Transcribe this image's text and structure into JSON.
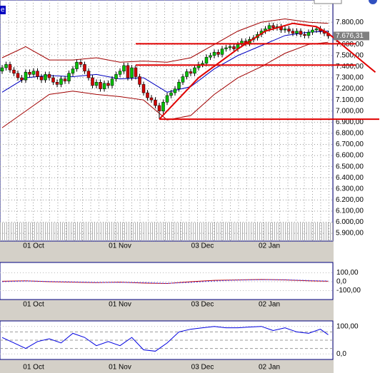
{
  "chart_data": {
    "type": "candlestick",
    "tab": "e",
    "xticks": [
      {
        "value": 8,
        "label": "01 Oct"
      },
      {
        "value": 30,
        "label": "01 Nov"
      },
      {
        "value": 51,
        "label": "03 Dec"
      },
      {
        "value": 68,
        "label": "02 Jan"
      }
    ],
    "ylim": [
      5830,
      8000
    ],
    "yticks": [
      {
        "value": 5900,
        "label": "5.900,00"
      },
      {
        "value": 6000,
        "label": "6.000,00"
      },
      {
        "value": 6100,
        "label": "6.100,00"
      },
      {
        "value": 6200,
        "label": "6.200,00"
      },
      {
        "value": 6300,
        "label": "6.300,00"
      },
      {
        "value": 6400,
        "label": "6.400,00"
      },
      {
        "value": 6500,
        "label": "6.500,00"
      },
      {
        "value": 6600,
        "label": "6.600,00"
      },
      {
        "value": 6700,
        "label": "6.700,00"
      },
      {
        "value": 6800,
        "label": "6.800,00"
      },
      {
        "value": 6900,
        "label": "6.900,00"
      },
      {
        "value": 7000,
        "label": "7.000,00"
      },
      {
        "value": 7100,
        "label": "7.100,00"
      },
      {
        "value": 7200,
        "label": "7.200,00"
      },
      {
        "value": 7300,
        "label": "7.300,00"
      },
      {
        "value": 7400,
        "label": "7.400,00"
      },
      {
        "value": 7500,
        "label": "7.500,00"
      },
      {
        "value": 7600,
        "label": "7.600,00"
      },
      {
        "value": 7800,
        "label": "7.800,00"
      }
    ],
    "grid": true,
    "up_color": "#00c000",
    "down_color": "#d00000",
    "candles": {
      "open": [
        7360,
        7390,
        7420,
        7370,
        7340,
        7300,
        7280,
        7350,
        7330,
        7360,
        7310,
        7280,
        7330,
        7300,
        7260,
        7240,
        7290,
        7270,
        7340,
        7380,
        7440,
        7420,
        7360,
        7300,
        7230,
        7260,
        7200,
        7250,
        7230,
        7290,
        7330,
        7360,
        7410,
        7300,
        7390,
        7310,
        7240,
        7165,
        7120,
        7100,
        7050,
        7000,
        7080,
        7140,
        7165,
        7200,
        7260,
        7310,
        7355,
        7340,
        7390,
        7420,
        7430,
        7485,
        7500,
        7530,
        7510,
        7560,
        7570,
        7580,
        7560,
        7600,
        7630,
        7610,
        7645,
        7660,
        7690,
        7720,
        7740,
        7770,
        7750,
        7760,
        7730,
        7740,
        7720,
        7700,
        7720,
        7690,
        7680,
        7710,
        7730,
        7740,
        7720,
        7700
      ],
      "close": [
        7390,
        7420,
        7370,
        7340,
        7300,
        7280,
        7350,
        7330,
        7360,
        7310,
        7280,
        7330,
        7300,
        7260,
        7240,
        7290,
        7270,
        7340,
        7380,
        7440,
        7420,
        7360,
        7300,
        7230,
        7260,
        7200,
        7250,
        7230,
        7290,
        7330,
        7360,
        7410,
        7300,
        7390,
        7310,
        7240,
        7165,
        7120,
        7100,
        7050,
        7000,
        7080,
        7140,
        7165,
        7200,
        7260,
        7310,
        7355,
        7340,
        7390,
        7420,
        7430,
        7485,
        7500,
        7530,
        7510,
        7560,
        7570,
        7580,
        7560,
        7600,
        7630,
        7610,
        7645,
        7660,
        7690,
        7720,
        7740,
        7770,
        7750,
        7760,
        7730,
        7740,
        7720,
        7700,
        7720,
        7690,
        7680,
        7710,
        7730,
        7740,
        7720,
        7700,
        7676.31
      ],
      "high": [
        7415,
        7445,
        7445,
        7395,
        7365,
        7325,
        7375,
        7375,
        7385,
        7385,
        7335,
        7355,
        7355,
        7325,
        7285,
        7315,
        7315,
        7365,
        7405,
        7465,
        7465,
        7445,
        7385,
        7325,
        7285,
        7285,
        7275,
        7275,
        7315,
        7355,
        7385,
        7435,
        7435,
        7415,
        7415,
        7335,
        7265,
        7190,
        7145,
        7125,
        7075,
        7105,
        7165,
        7190,
        7225,
        7285,
        7335,
        7380,
        7380,
        7415,
        7445,
        7455,
        7510,
        7525,
        7555,
        7555,
        7585,
        7595,
        7605,
        7605,
        7625,
        7655,
        7655,
        7670,
        7685,
        7715,
        7745,
        7765,
        7795,
        7795,
        7785,
        7785,
        7765,
        7765,
        7745,
        7745,
        7745,
        7715,
        7735,
        7755,
        7765,
        7765,
        7745,
        7725
      ],
      "low": [
        7335,
        7365,
        7345,
        7315,
        7275,
        7255,
        7255,
        7305,
        7305,
        7285,
        7255,
        7255,
        7275,
        7235,
        7215,
        7215,
        7245,
        7245,
        7315,
        7355,
        7395,
        7335,
        7275,
        7205,
        7205,
        7175,
        7175,
        7205,
        7205,
        7265,
        7305,
        7335,
        7275,
        7275,
        7285,
        7215,
        7140,
        7095,
        7075,
        7025,
        6930,
        6975,
        7055,
        7115,
        7140,
        7175,
        7235,
        7285,
        7315,
        7315,
        7365,
        7395,
        7405,
        7460,
        7475,
        7485,
        7485,
        7535,
        7545,
        7535,
        7535,
        7575,
        7585,
        7585,
        7620,
        7635,
        7665,
        7695,
        7715,
        7725,
        7725,
        7705,
        7705,
        7695,
        7675,
        7675,
        7665,
        7655,
        7655,
        7685,
        7705,
        7695,
        7675,
        7651
      ],
      "last_price_label": "7.676,31"
    },
    "overlays": [
      {
        "color": "#0000c0",
        "x": [
          0,
          6,
          12,
          18,
          24,
          30,
          36,
          42,
          48,
          54,
          60,
          66,
          72,
          78,
          83
        ],
        "values": [
          7170,
          7300,
          7320,
          7310,
          7330,
          7290,
          7300,
          7170,
          7220,
          7380,
          7500,
          7590,
          7680,
          7710,
          7720
        ]
      },
      {
        "color": "#a00000",
        "x": [
          0,
          6,
          12,
          18,
          24,
          30,
          36,
          42,
          48,
          54,
          60,
          66,
          72,
          78,
          83
        ],
        "values": [
          7480,
          7580,
          7460,
          7460,
          7480,
          7440,
          7450,
          7440,
          7480,
          7600,
          7720,
          7800,
          7830,
          7800,
          7790
        ]
      },
      {
        "color": "#a00000",
        "x": [
          0,
          6,
          12,
          18,
          24,
          30,
          36,
          42,
          48,
          54,
          60,
          66,
          72,
          78,
          83
        ],
        "values": [
          6850,
          7000,
          7150,
          7180,
          7150,
          7130,
          7100,
          6920,
          6960,
          7150,
          7300,
          7400,
          7520,
          7600,
          7620
        ]
      }
    ],
    "drawings": [
      {
        "color": "#e00000",
        "x": [
          34,
          90
        ],
        "values": [
          7606,
          7606
        ]
      },
      {
        "color": "#e00000",
        "x": [
          34,
          90
        ],
        "values": [
          7414,
          7414
        ]
      },
      {
        "color": "#e00000",
        "x": [
          40,
          96
        ],
        "values": [
          6927,
          6927
        ]
      },
      {
        "color": "#e00000",
        "x": [
          40,
          50,
          60,
          67,
          74,
          80,
          83,
          95
        ],
        "values": [
          6927,
          7300,
          7560,
          7720,
          7790,
          7760,
          7700,
          7350
        ]
      }
    ],
    "indicators": [
      {
        "type": "line",
        "ylim": [
          -200,
          200
        ],
        "yticks": [
          {
            "value": 100,
            "label": "100,00"
          },
          {
            "value": 0,
            "label": "0,0"
          },
          {
            "value": -100,
            "label": "-100,00"
          }
        ],
        "series": [
          {
            "color": "#c00000",
            "x": [
              0,
              6,
              12,
              18,
              24,
              30,
              36,
              42,
              48,
              54,
              60,
              66,
              72,
              78,
              83
            ],
            "values": [
              5,
              10,
              0,
              -5,
              -10,
              -5,
              -15,
              -20,
              0,
              15,
              20,
              25,
              20,
              10,
              5
            ]
          },
          {
            "color": "#4040ff",
            "dash": true,
            "x": [
              0,
              6,
              12,
              18,
              24,
              30,
              36,
              42,
              48,
              54,
              60,
              66,
              72,
              78,
              83
            ],
            "values": [
              0,
              8,
              3,
              -2,
              -8,
              -8,
              -10,
              -18,
              -8,
              8,
              18,
              22,
              22,
              14,
              8
            ]
          }
        ]
      },
      {
        "type": "line",
        "ylim": [
          -20,
          120
        ],
        "yticks": [
          {
            "value": 100,
            "label": "100,00"
          },
          {
            "value": 0,
            "label": "0,0"
          }
        ],
        "levels": [
          80,
          50,
          20
        ],
        "series": [
          {
            "color": "#0000e0",
            "x": [
              0,
              3,
              6,
              9,
              12,
              15,
              18,
              21,
              24,
              27,
              30,
              33,
              36,
              39,
              42,
              45,
              48,
              51,
              54,
              57,
              60,
              63,
              66,
              69,
              72,
              75,
              78,
              81,
              83
            ],
            "values": [
              60,
              40,
              20,
              45,
              55,
              40,
              75,
              60,
              30,
              45,
              30,
              60,
              15,
              10,
              40,
              80,
              90,
              95,
              100,
              95,
              95,
              98,
              100,
              85,
              95,
              80,
              75,
              90,
              70
            ]
          }
        ]
      }
    ]
  }
}
